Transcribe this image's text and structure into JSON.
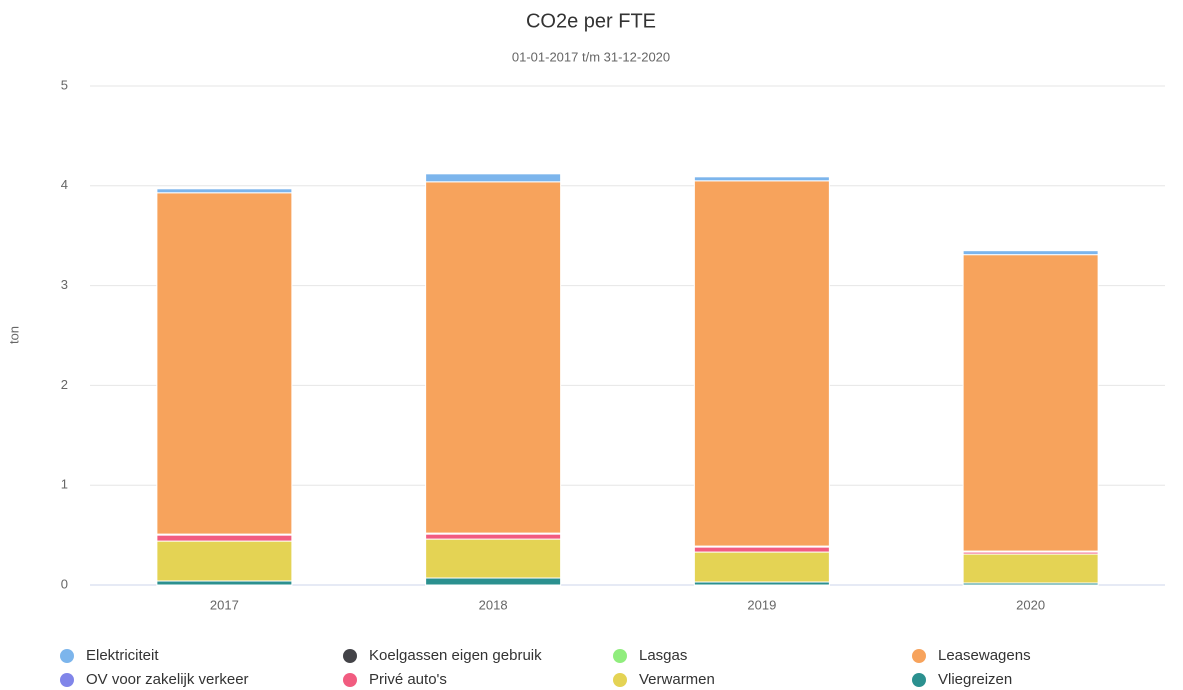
{
  "chart_data": {
    "type": "stacked_bar",
    "title": "CO2e per FTE",
    "subtitle": "01-01-2017 t/m 31-12-2020",
    "y_label": "ton",
    "categories": [
      "2017",
      "2018",
      "2019",
      "2020"
    ],
    "ylim": [
      0,
      5
    ],
    "yticks": [
      0,
      1,
      2,
      3,
      4,
      5
    ],
    "grid": true,
    "series": [
      {
        "name": "Elektriciteit",
        "color": "#7cb5ec",
        "values": [
          0.04,
          0.08,
          0.04,
          0.04
        ]
      },
      {
        "name": "Koelgassen eigen gebruik",
        "color": "#434348",
        "values": [
          0,
          0,
          0,
          0
        ]
      },
      {
        "name": "Lasgas",
        "color": "#90ed7d",
        "values": [
          0,
          0,
          0,
          0
        ]
      },
      {
        "name": "Leasewagens",
        "color": "#f7a35c",
        "values": [
          3.42,
          3.52,
          3.66,
          2.97
        ]
      },
      {
        "name": "OV voor zakelijk verkeer",
        "color": "#8085e9",
        "values": [
          0.01,
          0.01,
          0.01,
          0.01
        ]
      },
      {
        "name": "Privé auto's",
        "color": "#f15c80",
        "values": [
          0.06,
          0.05,
          0.05,
          0.02
        ]
      },
      {
        "name": "Verwarmen",
        "color": "#e4d354",
        "values": [
          0.4,
          0.39,
          0.3,
          0.29
        ]
      },
      {
        "name": "Vliegreizen",
        "color": "#2b908f",
        "values": [
          0.04,
          0.07,
          0.03,
          0.02
        ]
      }
    ]
  }
}
